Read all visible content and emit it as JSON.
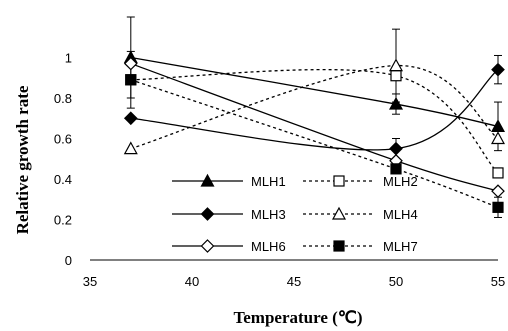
{
  "chart_data": {
    "type": "line",
    "xlabel": "Temperature (℃)",
    "ylabel": "Relative growth rate",
    "xlim": [
      35,
      55
    ],
    "ylim": [
      0,
      1.2
    ],
    "x_ticks": [
      "35",
      "40",
      "45",
      "50",
      "55"
    ],
    "y_ticks": [
      "0",
      "0.2",
      "0.4",
      "0.6",
      "0.8",
      "1"
    ],
    "x": [
      37,
      50,
      55
    ],
    "grid": false,
    "legend_position": "lower-left",
    "series": [
      {
        "name": "MLH1",
        "marker": "triangle",
        "filled": true,
        "dash": false,
        "values": [
          1.0,
          0.77,
          0.66
        ],
        "errors": [
          0.2,
          0.05,
          0.12
        ]
      },
      {
        "name": "MLH2",
        "marker": "square",
        "filled": false,
        "dash": true,
        "values": [
          0.89,
          0.91,
          0.43
        ],
        "errors": [
          0.0,
          0.0,
          0.0
        ]
      },
      {
        "name": "MLH3",
        "marker": "diamond",
        "filled": true,
        "dash": false,
        "values": [
          0.7,
          0.55,
          0.94
        ],
        "errors": [
          0.0,
          0.05,
          0.07
        ]
      },
      {
        "name": "MLH4",
        "marker": "triangle",
        "filled": false,
        "dash": true,
        "values": [
          0.55,
          0.96,
          0.6
        ],
        "errors": [
          0.0,
          0.18,
          0.0
        ]
      },
      {
        "name": "MLH6",
        "marker": "diamond",
        "filled": false,
        "dash": false,
        "values": [
          0.97,
          0.49,
          0.34
        ],
        "errors": [
          0.0,
          0.0,
          0.0
        ]
      },
      {
        "name": "MLH7",
        "marker": "square",
        "filled": true,
        "dash": true,
        "values": [
          0.89,
          0.45,
          0.26
        ],
        "errors": [
          0.14,
          0.0,
          0.05
        ]
      }
    ]
  }
}
